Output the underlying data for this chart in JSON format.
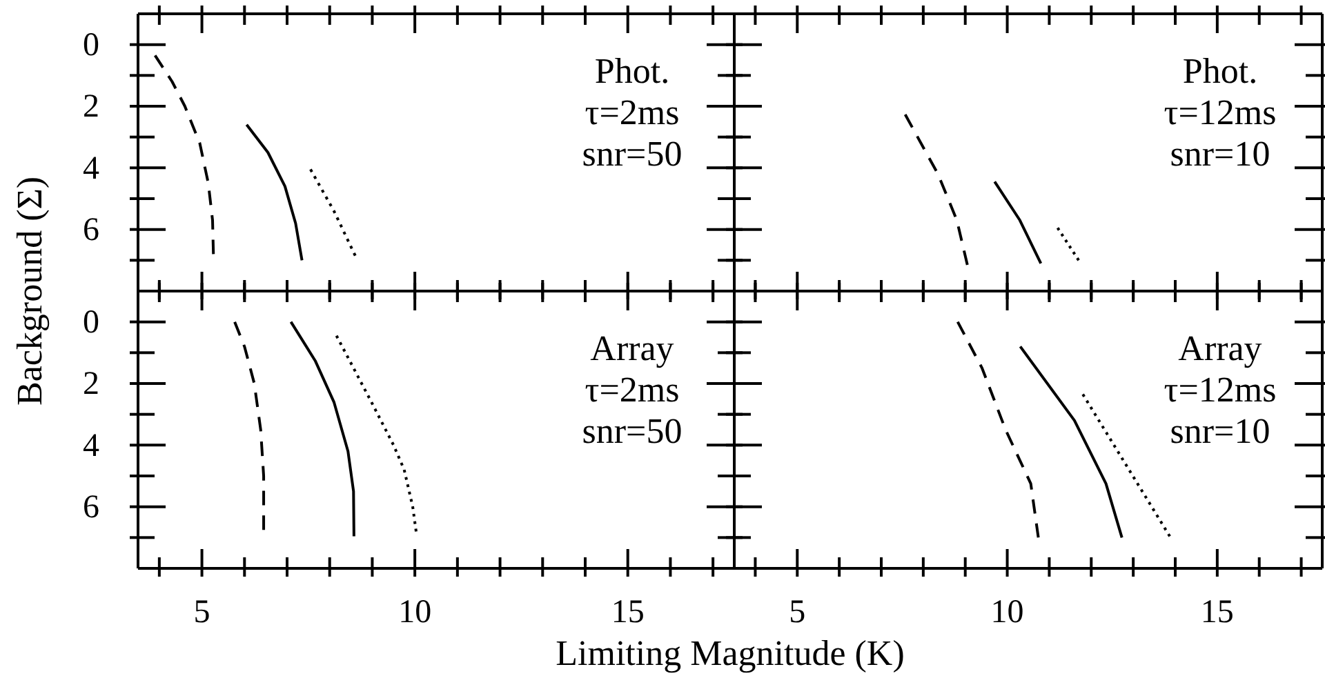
{
  "chart_data": [
    {
      "type": "line",
      "ylabel": "Background (Σ)",
      "tick_labels": "y",
      "annotations": [
        "Phot.",
        "τ=2ms",
        "snr=50"
      ],
      "xlim": [
        3.5,
        17.5
      ],
      "ylim": [
        8,
        -1
      ],
      "xticks": [
        {
          "value": 4,
          "label": null
        },
        5,
        {
          "value": 6,
          "label": null
        },
        {
          "value": 7,
          "label": null
        },
        {
          "value": 8,
          "label": null
        },
        {
          "value": 9,
          "label": null
        },
        10,
        {
          "value": 11,
          "label": null
        },
        {
          "value": 12,
          "label": null
        },
        {
          "value": 13,
          "label": null
        },
        {
          "value": 14,
          "label": null
        },
        15,
        {
          "value": 16,
          "label": null
        },
        {
          "value": 17,
          "label": null
        }
      ],
      "yticks": [
        0,
        {
          "value": 1,
          "label": null
        },
        2,
        {
          "value": 3,
          "label": null
        },
        4,
        {
          "value": 5,
          "label": null
        },
        6,
        {
          "value": 7,
          "label": null
        }
      ],
      "series": [
        {
          "color": "#000000",
          "line_style": "dashed",
          "x": [
            3.9,
            4.3,
            4.6,
            4.95,
            5.15,
            5.25,
            5.27
          ],
          "values": [
            0.35,
            1.2,
            2.0,
            3.2,
            4.5,
            5.7,
            6.8
          ]
        },
        {
          "color": "#000000",
          "line_style": "solid",
          "x": [
            6.05,
            6.55,
            6.95,
            7.2,
            7.35
          ],
          "values": [
            2.6,
            3.5,
            4.6,
            5.8,
            7.0
          ]
        },
        {
          "color": "#000000",
          "line_style": "dotted",
          "x": [
            7.55,
            8.1,
            8.6
          ],
          "values": [
            4.05,
            5.4,
            6.85
          ]
        }
      ]
    },
    {
      "type": "line",
      "tick_labels": false,
      "annotations": [
        "Phot.",
        "τ=12ms",
        "snr=10"
      ],
      "xlim": [
        3.5,
        17.5
      ],
      "ylim": [
        8,
        -1
      ],
      "xticks": [
        {
          "value": 4,
          "label": null
        },
        5,
        {
          "value": 6,
          "label": null
        },
        {
          "value": 7,
          "label": null
        },
        {
          "value": 8,
          "label": null
        },
        {
          "value": 9,
          "label": null
        },
        10,
        {
          "value": 11,
          "label": null
        },
        {
          "value": 12,
          "label": null
        },
        {
          "value": 13,
          "label": null
        },
        {
          "value": 14,
          "label": null
        },
        15,
        {
          "value": 16,
          "label": null
        },
        {
          "value": 17,
          "label": null
        }
      ],
      "yticks": [
        0,
        {
          "value": 1,
          "label": null
        },
        2,
        {
          "value": 3,
          "label": null
        },
        4,
        {
          "value": 5,
          "label": null
        },
        6,
        {
          "value": 7,
          "label": null
        }
      ],
      "series": [
        {
          "color": "#000000",
          "line_style": "dashed",
          "x": [
            7.57,
            8.35,
            8.8,
            9.05
          ],
          "values": [
            2.27,
            4.2,
            5.7,
            7.15
          ]
        },
        {
          "color": "#000000",
          "line_style": "solid",
          "x": [
            9.7,
            10.3,
            10.8
          ],
          "values": [
            4.45,
            5.7,
            7.1
          ]
        },
        {
          "color": "#000000",
          "line_style": "dotted",
          "x": [
            11.2,
            11.7
          ],
          "values": [
            5.95,
            7.0
          ]
        }
      ]
    },
    {
      "type": "line",
      "xlabel": "Limiting Magnitude (K)",
      "annotations": [
        "Array",
        "τ=2ms",
        "snr=50"
      ],
      "xlim": [
        3.5,
        17.5
      ],
      "ylim": [
        8,
        -1
      ],
      "xticks": [
        {
          "value": 4,
          "label": null
        },
        5,
        {
          "value": 6,
          "label": null
        },
        {
          "value": 7,
          "label": null
        },
        {
          "value": 8,
          "label": null
        },
        {
          "value": 9,
          "label": null
        },
        10,
        {
          "value": 11,
          "label": null
        },
        {
          "value": 12,
          "label": null
        },
        {
          "value": 13,
          "label": null
        },
        {
          "value": 14,
          "label": null
        },
        15,
        {
          "value": 16,
          "label": null
        },
        {
          "value": 17,
          "label": null
        }
      ],
      "yticks": [
        0,
        {
          "value": 1,
          "label": null
        },
        2,
        {
          "value": 3,
          "label": null
        },
        4,
        {
          "value": 5,
          "label": null
        },
        6,
        {
          "value": 7,
          "label": null
        }
      ],
      "series": [
        {
          "color": "#000000",
          "line_style": "dashed",
          "x": [
            5.77,
            6.0,
            6.23,
            6.38,
            6.45,
            6.45
          ],
          "values": [
            0,
            0.8,
            2.0,
            3.5,
            5.0,
            6.75
          ]
        },
        {
          "color": "#000000",
          "line_style": "solid",
          "x": [
            7.09,
            7.66,
            8.1,
            8.43,
            8.56,
            8.57
          ],
          "values": [
            0,
            1.26,
            2.6,
            4.2,
            5.5,
            6.96
          ]
        },
        {
          "color": "#000000",
          "line_style": "dotted",
          "x": [
            8.16,
            8.98,
            9.5,
            9.75,
            9.95,
            10.03
          ],
          "values": [
            0.45,
            2.6,
            4.0,
            4.8,
            6.0,
            6.8
          ]
        }
      ]
    },
    {
      "type": "line",
      "tick_labels": "x",
      "annotations": [
        "Array",
        "τ=12ms",
        "snr=10"
      ],
      "xlim": [
        3.5,
        17.5
      ],
      "ylim": [
        8,
        -1
      ],
      "xticks": [
        {
          "value": 4,
          "label": null
        },
        5,
        {
          "value": 6,
          "label": null
        },
        {
          "value": 7,
          "label": null
        },
        {
          "value": 8,
          "label": null
        },
        {
          "value": 9,
          "label": null
        },
        10,
        {
          "value": 11,
          "label": null
        },
        {
          "value": 12,
          "label": null
        },
        {
          "value": 13,
          "label": null
        },
        {
          "value": 14,
          "label": null
        },
        15,
        {
          "value": 16,
          "label": null
        },
        {
          "value": 17,
          "label": null
        }
      ],
      "yticks": [
        0,
        {
          "value": 1,
          "label": null
        },
        2,
        {
          "value": 3,
          "label": null
        },
        4,
        {
          "value": 5,
          "label": null
        },
        6,
        {
          "value": 7,
          "label": null
        }
      ],
      "series": [
        {
          "color": "#000000",
          "line_style": "dashed",
          "x": [
            8.82,
            9.4,
            9.96,
            10.56,
            10.74
          ],
          "values": [
            0,
            1.5,
            3.5,
            5.25,
            7.0
          ]
        },
        {
          "color": "#000000",
          "line_style": "solid",
          "x": [
            10.31,
            11.6,
            12.35,
            12.73
          ],
          "values": [
            0.8,
            3.2,
            5.25,
            7.0
          ]
        },
        {
          "color": "#000000",
          "line_style": "dotted",
          "x": [
            11.8,
            12.9,
            13.87
          ],
          "values": [
            2.35,
            4.8,
            6.96
          ]
        }
      ]
    }
  ]
}
